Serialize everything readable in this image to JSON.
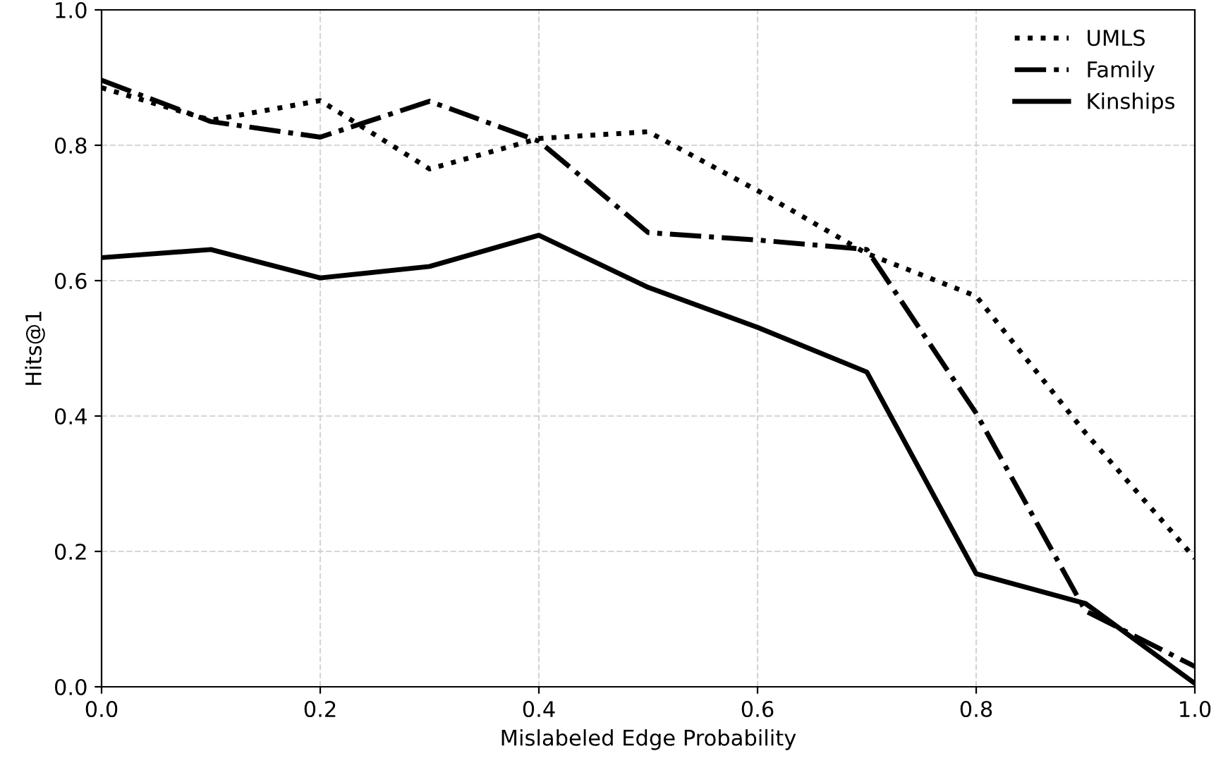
{
  "chart_data": {
    "type": "line",
    "xlabel": "Mislabeled Edge Probability",
    "ylabel": "Hits@1",
    "x": [
      0.0,
      0.1,
      0.2,
      0.3,
      0.4,
      0.5,
      0.6,
      0.7,
      0.8,
      0.9,
      1.0
    ],
    "series": [
      {
        "name": "UMLS",
        "color": "#000000",
        "line_style": "dotted",
        "values": [
          0.885,
          0.837,
          0.866,
          0.765,
          0.81,
          0.82,
          0.733,
          0.64,
          0.577,
          0.375,
          0.19
        ]
      },
      {
        "name": "Family",
        "color": "#000000",
        "line_style": "dashdot",
        "values": [
          0.896,
          0.835,
          0.812,
          0.865,
          0.806,
          0.671,
          0.66,
          0.646,
          0.404,
          0.112,
          0.03
        ]
      },
      {
        "name": "Kinships",
        "color": "#000000",
        "line_style": "solid",
        "values": [
          0.634,
          0.646,
          0.604,
          0.621,
          0.667,
          0.59,
          0.531,
          0.465,
          0.167,
          0.123,
          0.005
        ]
      }
    ],
    "xlim": [
      0.0,
      1.0
    ],
    "ylim": [
      0.0,
      1.0
    ],
    "xticks": [
      {
        "value": 0.0,
        "label": "0.0"
      },
      {
        "value": 0.2,
        "label": "0.2"
      },
      {
        "value": 0.4,
        "label": "0.4"
      },
      {
        "value": 0.6,
        "label": "0.6"
      },
      {
        "value": 0.8,
        "label": "0.8"
      },
      {
        "value": 1.0,
        "label": "1.0"
      }
    ],
    "yticks": [
      {
        "value": 0.0,
        "label": "0.0"
      },
      {
        "value": 0.2,
        "label": "0.2"
      },
      {
        "value": 0.4,
        "label": "0.4"
      },
      {
        "value": 0.6,
        "label": "0.6"
      },
      {
        "value": 0.8,
        "label": "0.8"
      },
      {
        "value": 1.0,
        "label": "1.0"
      }
    ],
    "grid": true,
    "legend": "top right",
    "marker": "none"
  }
}
